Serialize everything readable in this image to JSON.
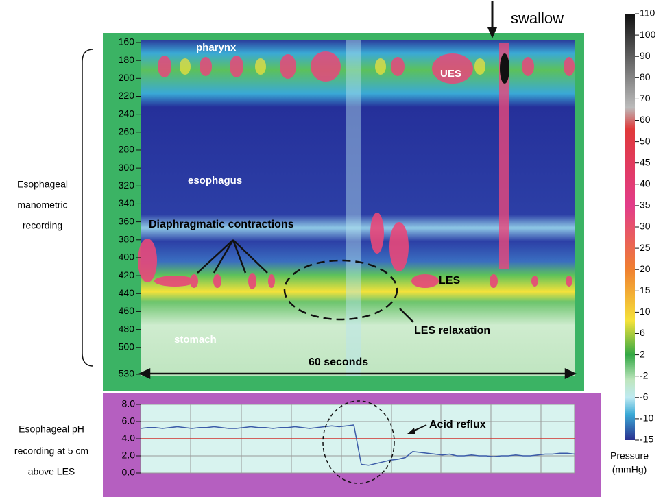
{
  "chart_data": [
    {
      "type": "heatmap",
      "swallow_label": "swallow",
      "side_label": [
        "Esophageal",
        "manometric",
        "recording"
      ],
      "ylim": [
        157,
        532
      ],
      "yticks": [
        160,
        180,
        200,
        220,
        240,
        260,
        280,
        300,
        320,
        340,
        360,
        380,
        400,
        420,
        440,
        460,
        480,
        500,
        530
      ],
      "annotations": {
        "pharynx": "pharynx",
        "ues": "UES",
        "esophagus": "esophagus",
        "diaphragm": "Diaphragmatic contractions",
        "les": "LES",
        "stomach": "stomach",
        "relaxation": "LES relaxation",
        "duration": "60 seconds"
      },
      "colorbar_ticks": [
        110,
        100,
        90,
        80,
        70,
        60,
        50,
        45,
        40,
        35,
        30,
        25,
        20,
        15,
        10,
        6,
        2,
        -2,
        -6,
        -10,
        -15
      ],
      "colorbar_title": [
        "Pressure",
        "(mmHg)"
      ]
    },
    {
      "type": "line",
      "side_label": [
        "Esophageal  pH",
        "recording  at 5 cm",
        "above LES"
      ],
      "ylim": [
        0,
        8
      ],
      "yticks": [
        {
          "value": 0,
          "label": "0.0"
        },
        {
          "value": 2,
          "label": "2.0"
        },
        {
          "value": 4,
          "label": "4.0"
        },
        {
          "value": 6,
          "label": "6.0"
        },
        {
          "value": 8,
          "label": "8.0"
        }
      ],
      "threshold": 4,
      "annotation": "Acid reflux",
      "color": "#3b5ba8",
      "threshold_color": "#d0312d",
      "values": [
        5.2,
        5.3,
        5.3,
        5.2,
        5.3,
        5.4,
        5.3,
        5.2,
        5.3,
        5.3,
        5.4,
        5.3,
        5.2,
        5.2,
        5.3,
        5.4,
        5.3,
        5.3,
        5.2,
        5.3,
        5.3,
        5.4,
        5.3,
        5.2,
        5.3,
        5.4,
        5.5,
        5.4,
        5.5,
        5.6,
        1.0,
        0.9,
        1.1,
        1.3,
        1.5,
        1.6,
        1.8,
        2.5,
        2.4,
        2.3,
        2.2,
        2.1,
        2.2,
        2.0,
        2.0,
        2.1,
        2.0,
        2.0,
        1.9,
        2.0,
        2.0,
        2.1,
        2.0,
        2.0,
        2.1,
        2.2,
        2.2,
        2.3,
        2.3,
        2.2
      ]
    }
  ]
}
